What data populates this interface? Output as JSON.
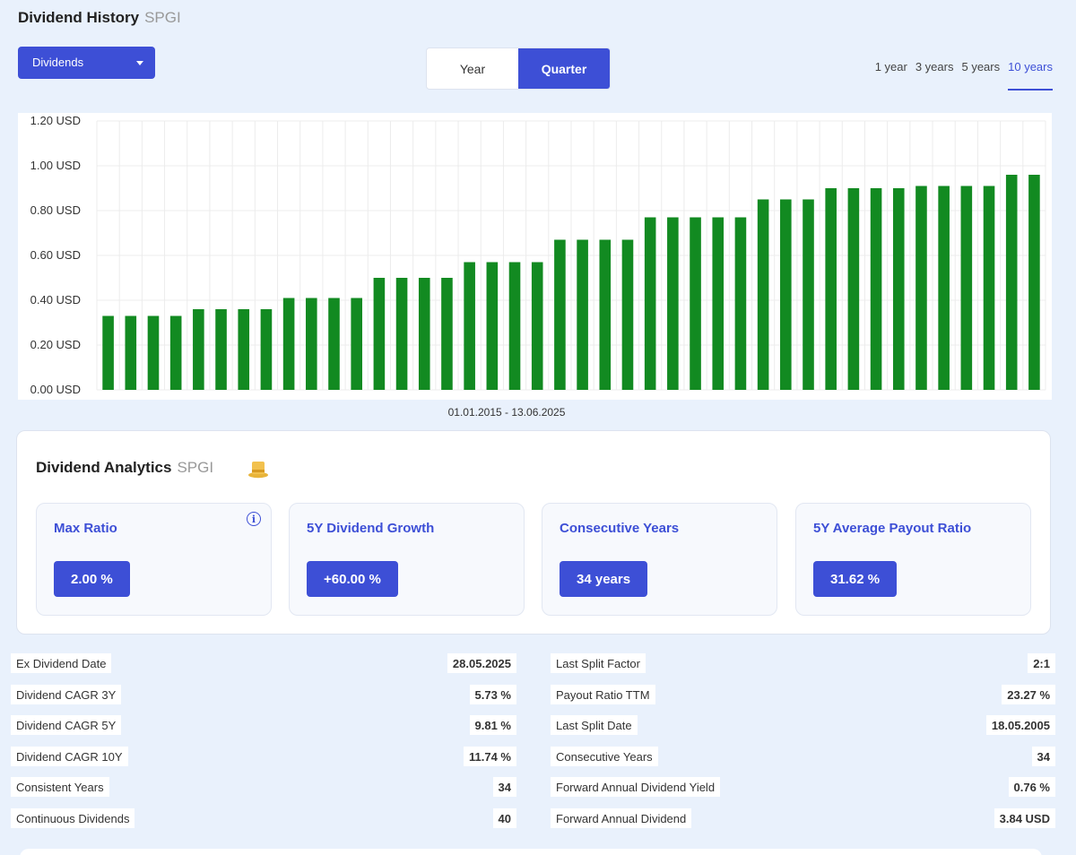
{
  "header": {
    "title": "Dividend History",
    "ticker": "SPGI"
  },
  "dropdown": {
    "label": "Dividends"
  },
  "period_toggle": {
    "options": [
      "Year",
      "Quarter"
    ],
    "active": "Quarter"
  },
  "range_tabs": {
    "options": [
      "1 year",
      "3 years",
      "5 years",
      "10 years"
    ],
    "active": "10 years"
  },
  "colors": {
    "accent": "#3d4fd6",
    "bar": "#128a21",
    "background": "#e9f1fc"
  },
  "chart_range_label": "01.01.2015 - 13.06.2025",
  "chart_data": {
    "type": "bar",
    "title": "",
    "xlabel": "01.01.2015 - 13.06.2025",
    "ylabel": "",
    "ylim": [
      0,
      1.2
    ],
    "y_ticks": [
      "0.00 USD",
      "0.20 USD",
      "0.40 USD",
      "0.60 USD",
      "0.80 USD",
      "1.00 USD",
      "1.20 USD"
    ],
    "grid": true,
    "series": [
      {
        "values": [
          0.33,
          0.33,
          0.33,
          0.33,
          0.36,
          0.36,
          0.36,
          0.36,
          0.41,
          0.41,
          0.41,
          0.41,
          0.5,
          0.5,
          0.5,
          0.5,
          0.57,
          0.57,
          0.57,
          0.57,
          0.67,
          0.67,
          0.67,
          0.67,
          0.77,
          0.77,
          0.77,
          0.77,
          0.77,
          0.85,
          0.85,
          0.85,
          0.9,
          0.9,
          0.9,
          0.9,
          0.91,
          0.91,
          0.91,
          0.91,
          0.96,
          0.96
        ]
      }
    ]
  },
  "analytics": {
    "title": "Dividend Analytics",
    "ticker": "SPGI",
    "cards": [
      {
        "label": "Max Ratio",
        "value": "2.00 %",
        "info": "i"
      },
      {
        "label": "5Y Dividend Growth",
        "value": "+60.00 %"
      },
      {
        "label": "Consecutive Years",
        "value": "34 years"
      },
      {
        "label": "5Y Average Payout Ratio",
        "value": "31.62 %"
      }
    ]
  },
  "stats_left": [
    {
      "label": "Ex Dividend Date",
      "value": "28.05.2025"
    },
    {
      "label": "Dividend CAGR 3Y",
      "value": "5.73 %"
    },
    {
      "label": "Dividend CAGR 5Y",
      "value": "9.81 %"
    },
    {
      "label": "Dividend CAGR 10Y",
      "value": "11.74 %"
    },
    {
      "label": "Consistent Years",
      "value": "34"
    },
    {
      "label": "Continuous Dividends",
      "value": "40"
    }
  ],
  "stats_right": [
    {
      "label": "Last Split Factor",
      "value": "2:1"
    },
    {
      "label": "Payout Ratio TTM",
      "value": "23.27 %"
    },
    {
      "label": "Last Split Date",
      "value": "18.05.2005"
    },
    {
      "label": "Consecutive Years",
      "value": "34"
    },
    {
      "label": "Forward Annual Dividend Yield",
      "value": "0.76 %"
    },
    {
      "label": "Forward Annual Dividend",
      "value": "3.84 USD"
    }
  ]
}
